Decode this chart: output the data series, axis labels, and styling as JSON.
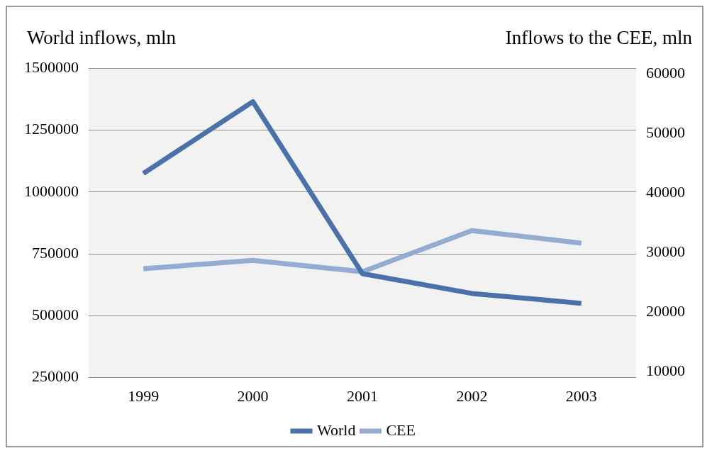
{
  "chart_data": {
    "type": "line",
    "ylabel": "World inflows, mln",
    "y2label": "Inflows to the CEE, mln",
    "categories": [
      "1999",
      "2000",
      "2001",
      "2002",
      "2003"
    ],
    "series": [
      {
        "name": "World",
        "color": "#4a72a8",
        "values": [
          1075000,
          1365000,
          670000,
          590000,
          550000
        ]
      },
      {
        "name": "CEE",
        "color": "#94acd4",
        "axis": "y2",
        "values": [
          27300,
          28700,
          26800,
          33700,
          31600
        ]
      }
    ],
    "ylim": [
      250000,
      1500000
    ],
    "yticks": [
      250000,
      500000,
      750000,
      1000000,
      1250000,
      1500000
    ],
    "y2lim": [
      9000,
      61000
    ],
    "y2ticks": [
      10000,
      20000,
      30000,
      40000,
      50000,
      60000
    ],
    "grid": "y",
    "legend": "bottom",
    "marker": "none",
    "line_style": "solid"
  }
}
